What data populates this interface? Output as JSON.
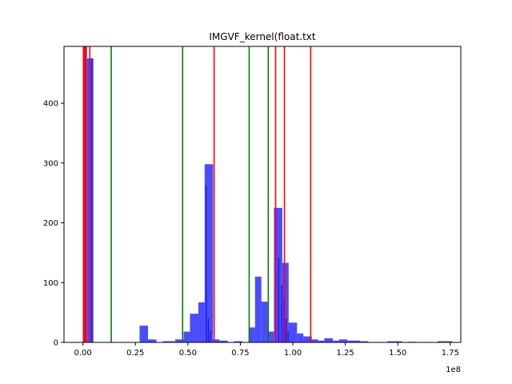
{
  "chart_data": {
    "type": "bar",
    "title": "IMGVF_kernel(float.txt",
    "xlabel": "",
    "ylabel": "",
    "x_offset_label": "1e8",
    "xlim": [
      -0.09,
      1.8
    ],
    "ylim": [
      0,
      495
    ],
    "x_ticks": [
      0.0,
      0.25,
      0.5,
      0.75,
      1.0,
      1.25,
      1.5,
      1.75
    ],
    "x_tick_labels": [
      "0.00",
      "0.25",
      "0.50",
      "0.75",
      "1.00",
      "1.25",
      "1.50",
      "1.75"
    ],
    "y_ticks": [
      0,
      100,
      200,
      300,
      400
    ],
    "y_tick_labels": [
      "0",
      "100",
      "200",
      "300",
      "400"
    ],
    "grid": false,
    "bar_color": "#0000ff",
    "bar_opacity": 0.7,
    "bins": [
      {
        "x0": 0.0,
        "x1": 0.02,
        "v": 495
      },
      {
        "x0": 0.02,
        "x1": 0.05,
        "v": 475
      },
      {
        "x0": 0.27,
        "x1": 0.31,
        "v": 28
      },
      {
        "x0": 0.31,
        "x1": 0.35,
        "v": 5
      },
      {
        "x0": 0.38,
        "x1": 0.41,
        "v": 2
      },
      {
        "x0": 0.41,
        "x1": 0.44,
        "v": 2
      },
      {
        "x0": 0.44,
        "x1": 0.48,
        "v": 5
      },
      {
        "x0": 0.48,
        "x1": 0.51,
        "v": 18
      },
      {
        "x0": 0.51,
        "x1": 0.55,
        "v": 48
      },
      {
        "x0": 0.55,
        "x1": 0.58,
        "v": 67
      },
      {
        "x0": 0.58,
        "x1": 0.62,
        "v": 298
      },
      {
        "x0": 0.62,
        "x1": 0.65,
        "v": 5
      },
      {
        "x0": 0.65,
        "x1": 0.69,
        "v": 3
      },
      {
        "x0": 0.72,
        "x1": 0.76,
        "v": 2
      },
      {
        "x0": 0.79,
        "x1": 0.82,
        "v": 25
      },
      {
        "x0": 0.82,
        "x1": 0.85,
        "v": 110
      },
      {
        "x0": 0.85,
        "x1": 0.88,
        "v": 68
      },
      {
        "x0": 0.88,
        "x1": 0.91,
        "v": 18
      },
      {
        "x0": 0.91,
        "x1": 0.95,
        "v": 225
      },
      {
        "x0": 0.95,
        "x1": 0.98,
        "v": 133
      },
      {
        "x0": 0.98,
        "x1": 1.02,
        "v": 33
      },
      {
        "x0": 1.02,
        "x1": 1.05,
        "v": 15
      },
      {
        "x0": 1.05,
        "x1": 1.09,
        "v": 10
      },
      {
        "x0": 1.09,
        "x1": 1.12,
        "v": 5
      },
      {
        "x0": 1.12,
        "x1": 1.15,
        "v": 3
      },
      {
        "x0": 1.15,
        "x1": 1.19,
        "v": 7
      },
      {
        "x0": 1.19,
        "x1": 1.22,
        "v": 3
      },
      {
        "x0": 1.22,
        "x1": 1.26,
        "v": 5
      },
      {
        "x0": 1.26,
        "x1": 1.29,
        "v": 3
      },
      {
        "x0": 1.29,
        "x1": 1.32,
        "v": 3
      },
      {
        "x0": 1.32,
        "x1": 1.36,
        "v": 2
      },
      {
        "x0": 1.45,
        "x1": 1.49,
        "v": 2
      },
      {
        "x0": 1.49,
        "x1": 1.52,
        "v": 2
      },
      {
        "x0": 1.55,
        "x1": 1.59,
        "v": 1
      },
      {
        "x0": 1.69,
        "x1": 1.72,
        "v": 2
      },
      {
        "x0": 1.72,
        "x1": 1.76,
        "v": 2
      }
    ],
    "spikes": [
      {
        "x0": 0.04,
        "x1": 0.045,
        "v": 475
      },
      {
        "x0": 0.585,
        "x1": 0.59,
        "v": 262
      },
      {
        "x0": 0.595,
        "x1": 0.6,
        "v": 40
      },
      {
        "x0": 0.605,
        "x1": 0.61,
        "v": 20
      },
      {
        "x0": 0.93,
        "x1": 0.935,
        "v": 142
      },
      {
        "x0": 0.945,
        "x1": 0.95,
        "v": 95
      },
      {
        "x0": 0.955,
        "x1": 0.96,
        "v": 75
      },
      {
        "x0": 0.965,
        "x1": 0.97,
        "v": 40
      },
      {
        "x0": 0.975,
        "x1": 0.98,
        "v": 20
      }
    ],
    "vlines": [
      {
        "x": 0.003,
        "color": "#ff0000"
      },
      {
        "x": 0.008,
        "color": "#ff0000"
      },
      {
        "x": 0.013,
        "color": "#ff0000"
      },
      {
        "x": 0.033,
        "color": "#ff0000"
      },
      {
        "x": 0.135,
        "color": "#008000"
      },
      {
        "x": 0.475,
        "color": "#008000"
      },
      {
        "x": 0.625,
        "color": "#ff0000"
      },
      {
        "x": 0.792,
        "color": "#008000"
      },
      {
        "x": 0.883,
        "color": "#008000"
      },
      {
        "x": 0.918,
        "color": "#ff0000"
      },
      {
        "x": 0.96,
        "color": "#ff0000"
      },
      {
        "x": 1.085,
        "color": "#ff0000"
      }
    ]
  }
}
